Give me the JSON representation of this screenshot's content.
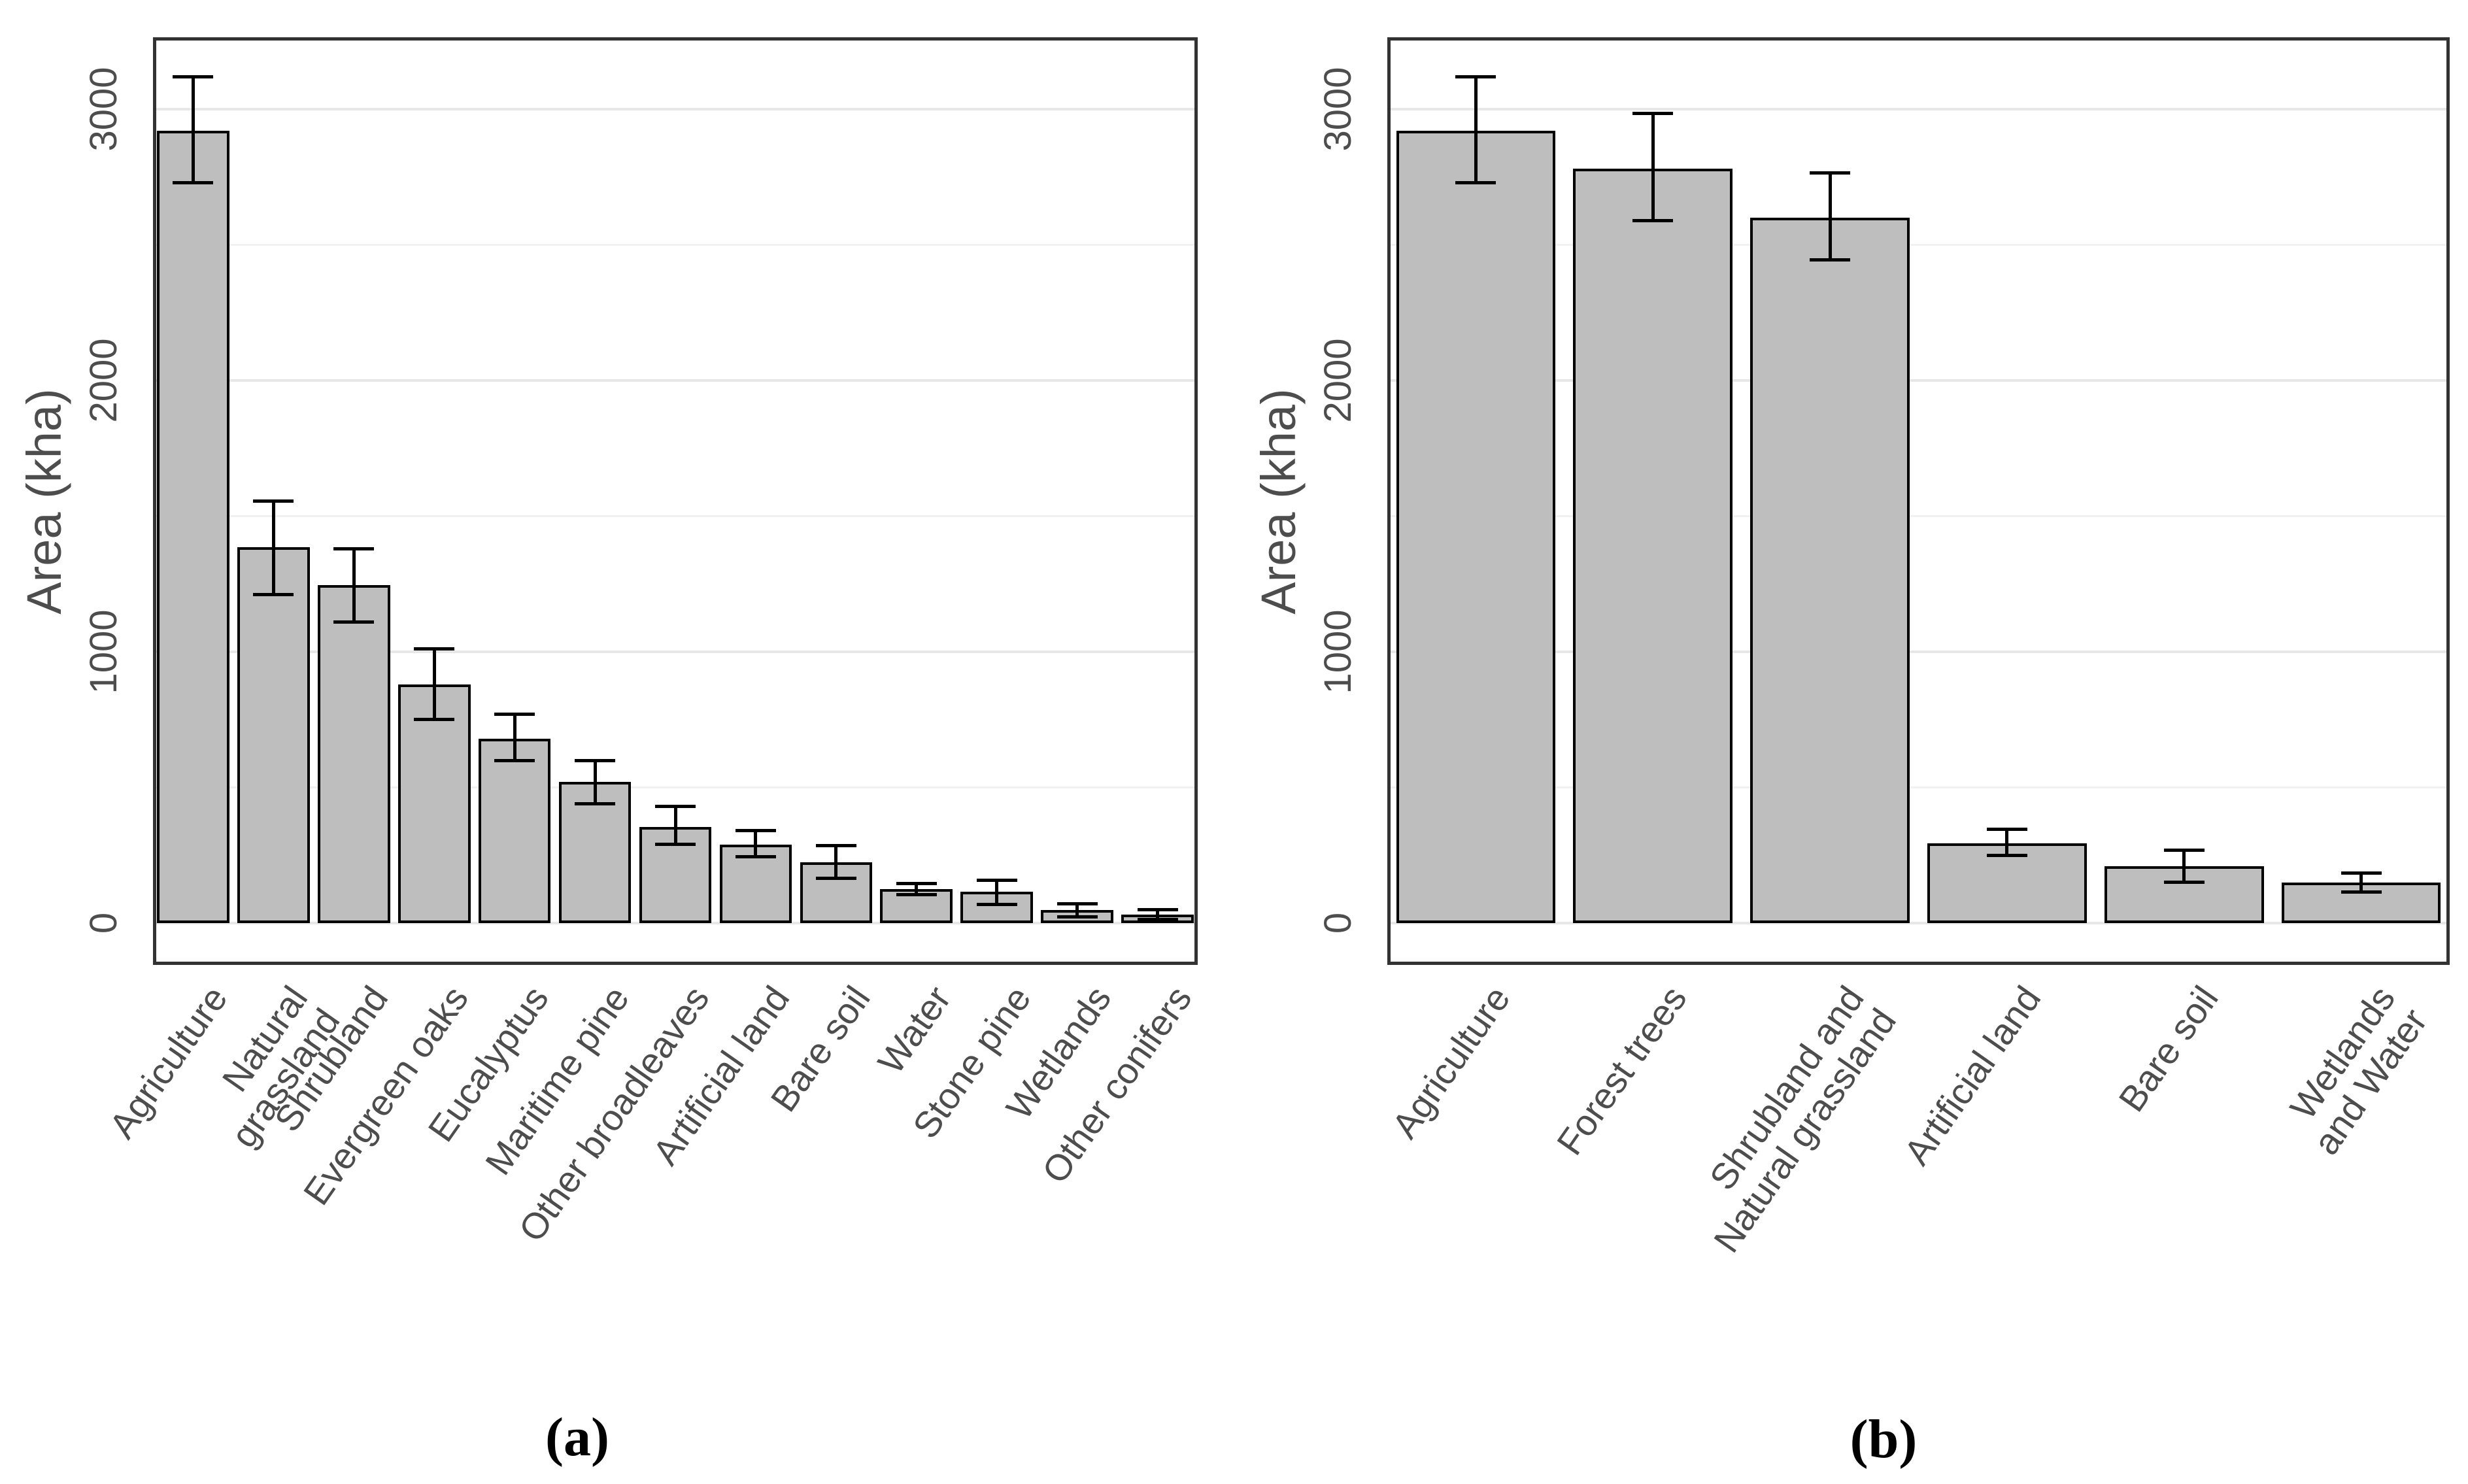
{
  "figure": {
    "background": "#ffffff",
    "colors": {
      "bar_fill": "#bebebe",
      "bar_stroke": "#000000",
      "error_bar": "#000000",
      "grid_major": "#e7e7e7",
      "grid_minor": "#f1f1f1",
      "panel_border": "#333333",
      "axis_text": "#4d4d4d",
      "caption_text": "#000000"
    }
  },
  "chart_data": [
    {
      "id": "a",
      "type": "bar",
      "title": "",
      "xlabel": "",
      "ylabel": "Area (kha)",
      "caption": "(a)",
      "ylim": [
        -154,
        3265
      ],
      "yticks": [
        0,
        1000,
        2000,
        3000
      ],
      "grid_major": [
        0,
        1000,
        2000,
        3000
      ],
      "grid_minor": [
        500,
        1500,
        2500
      ],
      "grid_on": true,
      "legend": "none",
      "categories": [
        "Agriculture",
        "Natural grassland",
        "Shrubland",
        "Evergreen oaks",
        "Eucalyptus",
        "Maritime pine",
        "Other broadleaves",
        "Artificial land",
        "Bare soil",
        "Water",
        "Stone pine",
        "Wetlands",
        "Other conifers"
      ],
      "values": [
        2920,
        1385,
        1245,
        880,
        680,
        520,
        355,
        290,
        225,
        125,
        115,
        48,
        32
      ],
      "error_low": [
        2730,
        1210,
        1110,
        750,
        600,
        440,
        290,
        245,
        165,
        105,
        70,
        24,
        13
      ],
      "error_high": [
        3120,
        1555,
        1380,
        1010,
        770,
        600,
        430,
        340,
        285,
        145,
        158,
        72,
        50
      ]
    },
    {
      "id": "b",
      "type": "bar",
      "title": "",
      "xlabel": "",
      "ylabel": "Area (kha)",
      "caption": "(b)",
      "ylim": [
        -154,
        3265
      ],
      "yticks": [
        0,
        1000,
        2000,
        3000
      ],
      "grid_major": [
        0,
        1000,
        2000,
        3000
      ],
      "grid_minor": [
        500,
        1500,
        2500
      ],
      "grid_on": true,
      "legend": "none",
      "categories": [
        "Agriculture",
        "Forest trees",
        "Shrubland and\nNatural grassland",
        "Artificial land",
        "Bare soil",
        "Wetlands\nand Water"
      ],
      "values": [
        2920,
        2780,
        2600,
        295,
        210,
        150
      ],
      "error_low": [
        2730,
        2590,
        2445,
        250,
        150,
        115
      ],
      "error_high": [
        3120,
        2985,
        2765,
        345,
        270,
        185
      ]
    }
  ]
}
